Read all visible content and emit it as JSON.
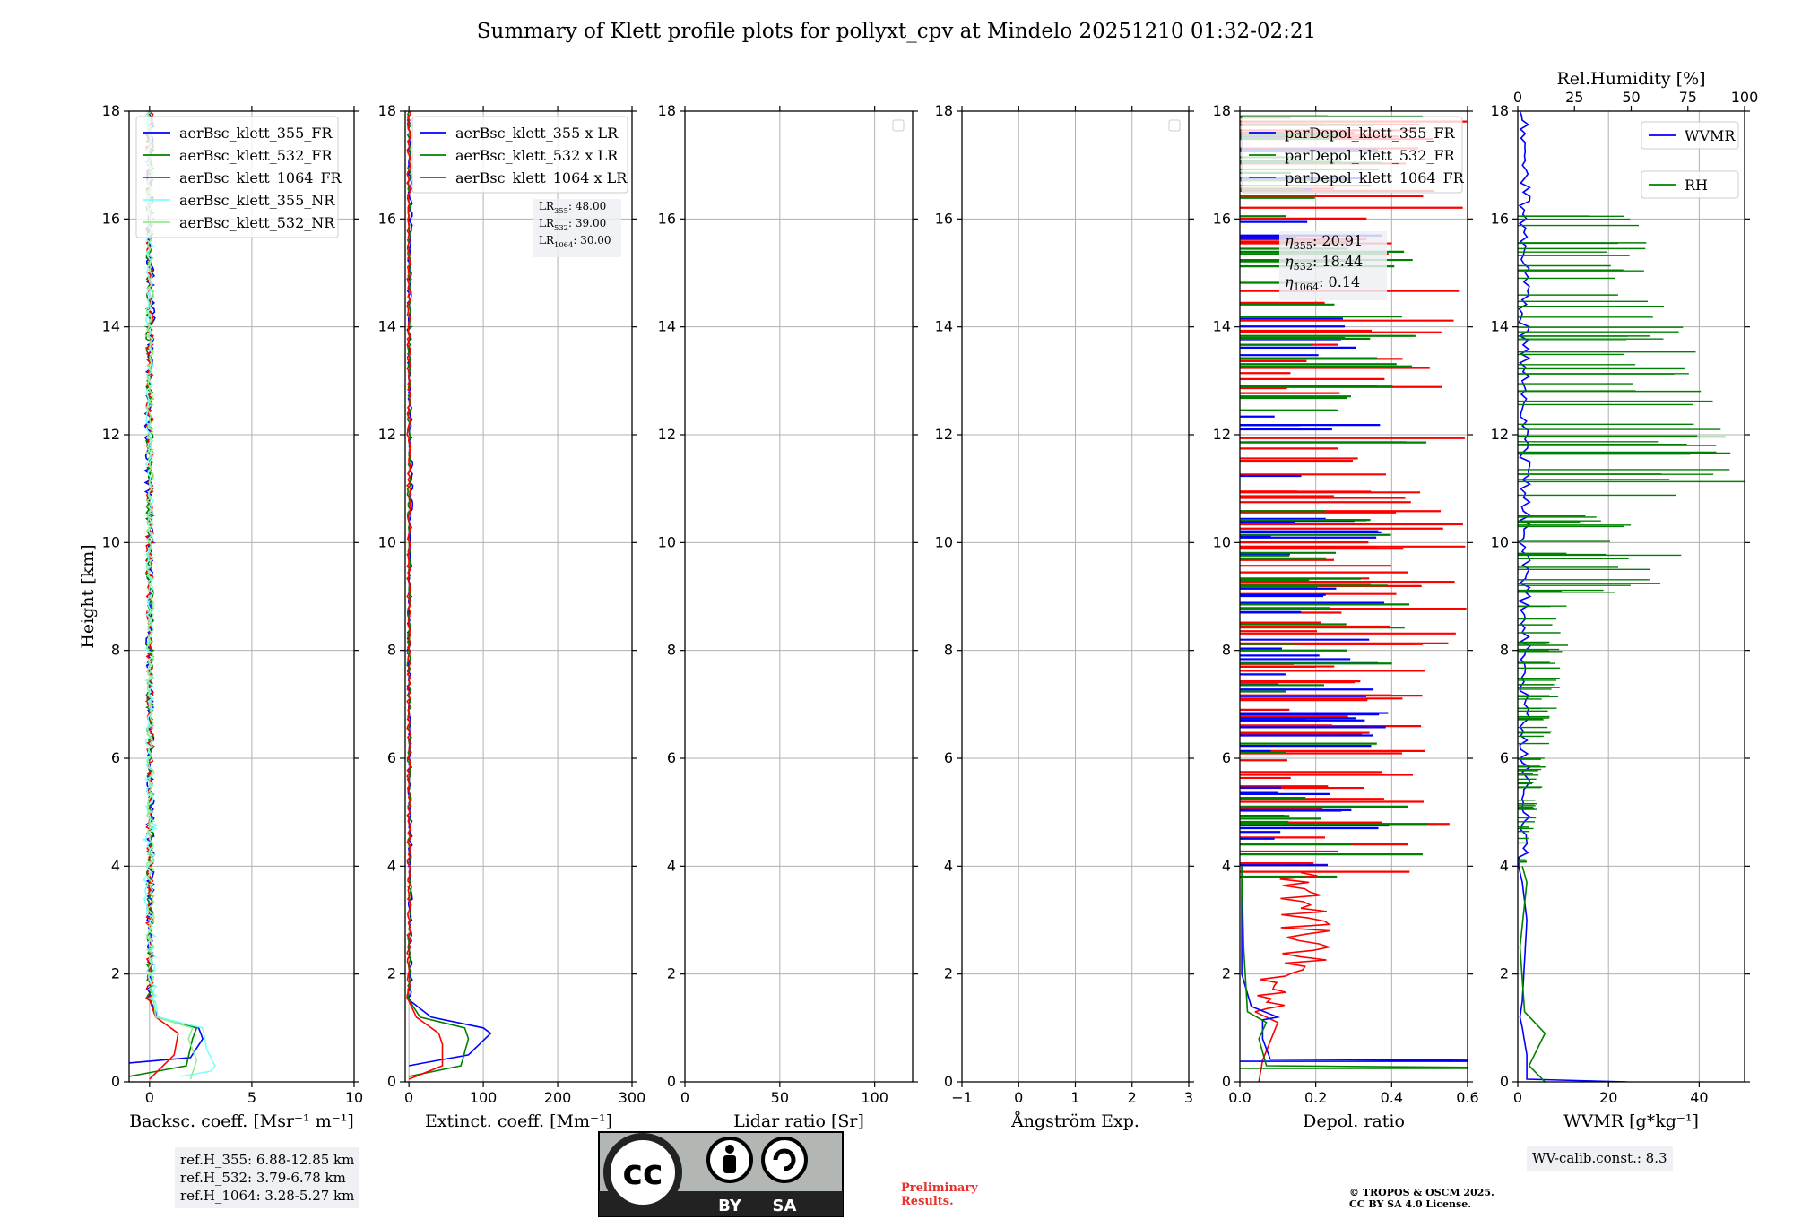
{
  "title": "Summary of Klett profile plots for pollyxt_cpv at Mindelo 20251210 01:32-02:21",
  "colors": {
    "blue": "#0000ff",
    "green": "#008000",
    "red": "#ff0000",
    "cyan": "#7fffff",
    "lightgreen": "#90ee90",
    "grid": "#b0b0b0",
    "axis": "#000000"
  },
  "y_axis": {
    "label": "Height [km]",
    "range": [
      0,
      18
    ],
    "ticks": [
      0,
      2,
      4,
      6,
      8,
      10,
      12,
      14,
      16,
      18
    ]
  },
  "chart_data": [
    {
      "id": "backscatter",
      "type": "line",
      "xlabel": "Backsc. coeff. [Msr⁻¹ m⁻¹]",
      "xlim": [
        -1,
        10
      ],
      "xticks": [
        0,
        5,
        10
      ],
      "series": [
        {
          "name": "aerBsc_klett_355_FR",
          "color": "blue",
          "points": [
            [
              -1,
              0.35
            ],
            [
              2,
              0.45
            ],
            [
              2.6,
              0.8
            ],
            [
              2.4,
              1.0
            ],
            [
              0.4,
              1.2
            ],
            [
              0.05,
              1.5
            ],
            [
              0.05,
              5
            ],
            [
              0,
              8
            ],
            [
              0.05,
              10
            ],
            [
              -0.1,
              12
            ],
            [
              0.1,
              14
            ],
            [
              0,
              16
            ],
            [
              0.05,
              18
            ]
          ]
        },
        {
          "name": "aerBsc_klett_532_FR",
          "color": "green",
          "points": [
            [
              -1,
              0.1
            ],
            [
              1.8,
              0.3
            ],
            [
              2.1,
              0.8
            ],
            [
              2.3,
              1.0
            ],
            [
              0.3,
              1.2
            ],
            [
              0.03,
              1.5
            ],
            [
              0.02,
              5
            ],
            [
              0.01,
              10
            ],
            [
              0,
              14
            ],
            [
              0.01,
              18
            ]
          ]
        },
        {
          "name": "aerBsc_klett_1064_FR",
          "color": "red",
          "points": [
            [
              0,
              0.05
            ],
            [
              1.2,
              0.5
            ],
            [
              1.4,
              0.9
            ],
            [
              0.3,
              1.2
            ],
            [
              0.02,
              1.5
            ],
            [
              0.01,
              10
            ],
            [
              0,
              18
            ]
          ]
        },
        {
          "name": "aerBsc_klett_355_NR",
          "color": "cyan",
          "points": [
            [
              1.5,
              0.1
            ],
            [
              3,
              0.2
            ],
            [
              3.2,
              0.3
            ],
            [
              2.8,
              0.6
            ],
            [
              2.6,
              1.0
            ],
            [
              0.4,
              1.2
            ],
            [
              0.1,
              2
            ],
            [
              0.1,
              2.7
            ],
            [
              0,
              3
            ],
            [
              -0.2,
              3.8
            ],
            [
              0.2,
              4.2
            ],
            [
              -0.2,
              4.5
            ],
            [
              0.2,
              4.7
            ],
            [
              0,
              5
            ],
            [
              0,
              18
            ]
          ]
        },
        {
          "name": "aerBsc_klett_532_NR",
          "color": "lightgreen",
          "points": [
            [
              2,
              0.05
            ],
            [
              2.3,
              0.4
            ],
            [
              1.9,
              0.8
            ],
            [
              2.1,
              1.0
            ],
            [
              0.3,
              1.2
            ],
            [
              0.05,
              2
            ],
            [
              0.05,
              5
            ],
            [
              0,
              18
            ]
          ]
        }
      ],
      "legend": "upper left",
      "info": [
        "ref.H_355: 6.88-12.85 km",
        "ref.H_532: 3.79-6.78 km",
        "ref.H_1064: 3.28-5.27 km"
      ]
    },
    {
      "id": "extinction",
      "type": "line",
      "xlabel": "Extinct. coeff. [Mm⁻¹]",
      "xlim": [
        -5,
        300
      ],
      "xticks": [
        0,
        100,
        200,
        300
      ],
      "series": [
        {
          "name": "aerBsc_klett_355 x LR",
          "color": "blue",
          "points": [
            [
              0,
              0.3
            ],
            [
              80,
              0.5
            ],
            [
              110,
              0.9
            ],
            [
              100,
              1.0
            ],
            [
              30,
              1.2
            ],
            [
              2,
              1.5
            ],
            [
              2,
              4
            ],
            [
              0,
              8
            ],
            [
              3,
              11
            ],
            [
              0,
              14
            ],
            [
              2,
              16
            ],
            [
              0,
              18
            ]
          ]
        },
        {
          "name": "aerBsc_klett_532 x LR",
          "color": "green",
          "points": [
            [
              0,
              0.1
            ],
            [
              70,
              0.3
            ],
            [
              80,
              0.8
            ],
            [
              75,
              1.0
            ],
            [
              15,
              1.2
            ],
            [
              1,
              1.5
            ],
            [
              0,
              10
            ],
            [
              1,
              14
            ],
            [
              0,
              18
            ]
          ]
        },
        {
          "name": "aerBsc_klett_1064 x LR",
          "color": "red",
          "points": [
            [
              0,
              0.05
            ],
            [
              45,
              0.3
            ],
            [
              45,
              0.7
            ],
            [
              40,
              0.9
            ],
            [
              10,
              1.2
            ],
            [
              0,
              1.5
            ],
            [
              0,
              18
            ]
          ]
        }
      ],
      "legend": "upper left",
      "annotation": [
        {
          "label": "LR",
          "sub": "355",
          "value": ": 48.00"
        },
        {
          "label": "LR",
          "sub": "532",
          "value": ": 39.00"
        },
        {
          "label": "LR",
          "sub": "1064",
          "value": ": 30.00"
        }
      ]
    },
    {
      "id": "lidar_ratio",
      "type": "line",
      "xlabel": "Lidar ratio [Sr]",
      "xlim": [
        0,
        120
      ],
      "xticks": [
        0,
        50,
        100
      ],
      "series": [],
      "legend": "upper right (empty)"
    },
    {
      "id": "angstrom",
      "type": "line",
      "xlabel": "Ångström Exp.",
      "xlim": [
        -1,
        3
      ],
      "xticks": [
        -1,
        0,
        1,
        2,
        3
      ],
      "series": [],
      "legend": "upper right (empty)"
    },
    {
      "id": "depol",
      "type": "line",
      "xlabel": "Depol. ratio",
      "xlim": [
        0,
        0.6
      ],
      "xticks": [
        0,
        0.2,
        0.4,
        0.6
      ],
      "xtick_labels": [
        "0.0",
        "0.2",
        "0.4",
        "0.6"
      ],
      "series": [
        {
          "name": "parDepol_klett_355_FR",
          "color": "blue"
        },
        {
          "name": "parDepol_klett_532_FR",
          "color": "green"
        },
        {
          "name": "parDepol_klett_1064_FR",
          "color": "red"
        }
      ],
      "legend": "upper right",
      "annotation": [
        {
          "label": "η",
          "sub": "355",
          "value": ": 20.91"
        },
        {
          "label": "η",
          "sub": "532",
          "value": ": 18.44"
        },
        {
          "label": "η",
          "sub": "1064",
          "value": ": 0.14"
        }
      ]
    },
    {
      "id": "wv",
      "type": "line",
      "xlabel": "WVMR [g*kg⁻¹]",
      "xlim": [
        0,
        50
      ],
      "xticks": [
        0,
        20,
        40
      ],
      "x2label": "Rel.Humidity [%]",
      "x2lim": [
        0,
        100
      ],
      "x2ticks": [
        0,
        25,
        50,
        75,
        100
      ],
      "series": [
        {
          "name": "WVMR",
          "color": "blue"
        },
        {
          "name": "RH",
          "color": "green"
        }
      ],
      "legend": "upper right",
      "info": [
        "WV-calib.const.: 8.3"
      ]
    }
  ],
  "footer": {
    "preliminary": [
      "Preliminary",
      "Results."
    ],
    "copyright": [
      "© TROPOS & OSCM 2025.",
      "CC BY SA 4.0 License."
    ],
    "license_logo": {
      "cc": "cc",
      "by": "BY",
      "sa": "SA"
    }
  }
}
